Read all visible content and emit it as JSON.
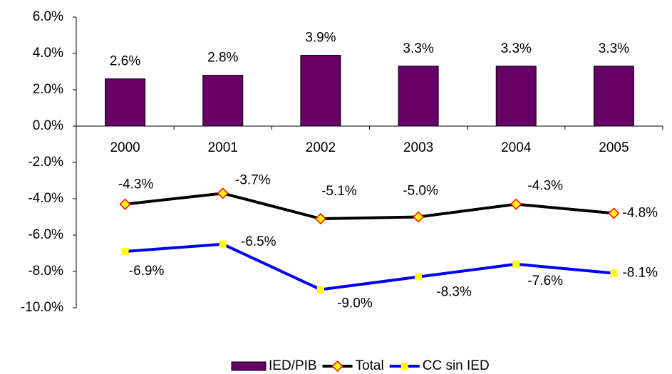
{
  "chart_data": {
    "type": "combo",
    "categories": [
      "2000",
      "2001",
      "2002",
      "2003",
      "2004",
      "2005"
    ],
    "series": [
      {
        "name": "IED/PIB",
        "type": "bar",
        "color": "#660066",
        "values": [
          2.6,
          2.8,
          3.9,
          3.3,
          3.3,
          3.3
        ],
        "value_labels": [
          "2.6%",
          "2.8%",
          "3.9%",
          "3.3%",
          "3.3%",
          "3.3%"
        ]
      },
      {
        "name": "Total",
        "type": "line",
        "color": "#000000",
        "marker": "diamond",
        "marker_fill": "#ffff00",
        "marker_stroke": "#ff0000",
        "values": [
          -4.3,
          -3.7,
          -5.1,
          -5.0,
          -4.3,
          -4.8
        ],
        "value_labels": [
          "-4.3%",
          "-3.7%",
          "-5.1%",
          "-5.0%",
          "-4.3%",
          "-4.8%"
        ]
      },
      {
        "name": "CC sin IED",
        "type": "line",
        "color": "#0000ff",
        "marker": "square",
        "marker_fill": "#ffff00",
        "marker_stroke": "#ffff00",
        "values": [
          -6.9,
          -6.5,
          -9.0,
          -8.3,
          -7.6,
          -8.1
        ],
        "value_labels": [
          "-6.9%",
          "-6.5%",
          "-9.0%",
          "-8.3%",
          "-7.6%",
          "-8.1%"
        ]
      }
    ],
    "ylim": [
      -10,
      6
    ],
    "yticks": [
      {
        "value": -10,
        "label": "-10.0%"
      },
      {
        "value": -8,
        "label": "-8.0%"
      },
      {
        "value": -6,
        "label": "-6.0%"
      },
      {
        "value": -4,
        "label": "-4.0%"
      },
      {
        "value": -2,
        "label": "-2.0%"
      },
      {
        "value": 0,
        "label": "0.0%"
      },
      {
        "value": 2,
        "label": "2.0%"
      },
      {
        "value": 4,
        "label": "4.0%"
      },
      {
        "value": 6,
        "label": "6.0%"
      }
    ],
    "grid": false,
    "legend": "bottom"
  }
}
